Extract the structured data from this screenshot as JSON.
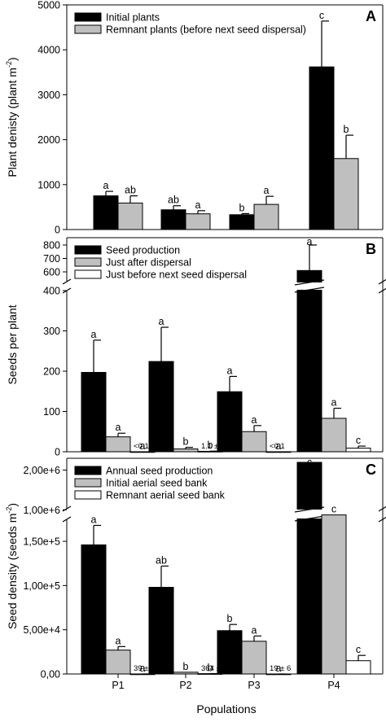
{
  "figure": {
    "xlabel": "Populations",
    "populations": [
      "P1",
      "P2",
      "P3",
      "P4"
    ],
    "colors": {
      "series1": "#000000",
      "series2": "#bfbfbf",
      "series3": "#ffffff",
      "axis": "#000000"
    }
  },
  "chart_data": [
    {
      "panel_label": "A",
      "type": "bar",
      "ylabel": "Plant denisty (plant m",
      "ylabel_sup": "-2",
      "ylabel_close": ")",
      "categories": [
        "P1",
        "P2",
        "P3",
        "P4"
      ],
      "ylim": [
        0,
        5000
      ],
      "yticks": [
        0,
        1000,
        2000,
        3000,
        4000,
        5000
      ],
      "ytick_labels": [
        "0",
        "1000",
        "2000",
        "3000",
        "4000",
        "5000"
      ],
      "legend_position": "top-left",
      "series": [
        {
          "name": "Initial plants",
          "values": [
            750,
            440,
            330,
            3620
          ],
          "errors": [
            100,
            90,
            25,
            1020
          ],
          "letters": [
            "a",
            "ab",
            "b",
            "c"
          ]
        },
        {
          "name": "Remnant plants (before next seed dispersal)",
          "values": [
            590,
            350,
            560,
            1580
          ],
          "errors": [
            160,
            70,
            180,
            520
          ],
          "letters": [
            "ab",
            "a",
            "a",
            "b"
          ]
        }
      ]
    },
    {
      "panel_label": "B",
      "type": "bar",
      "ylabel": "Seeds per plant",
      "categories": [
        "P1",
        "P2",
        "P3",
        "P4"
      ],
      "axis_break": true,
      "lower_ylim": [
        0,
        400
      ],
      "upper_ylim": [
        600,
        800
      ],
      "yticks_lower": [
        0,
        100,
        200,
        300,
        400
      ],
      "ytick_labels_lower": [
        "0",
        "100",
        "200",
        "300",
        "400"
      ],
      "yticks_upper": [
        600,
        700,
        800
      ],
      "ytick_labels_upper": [
        "600",
        "700",
        "800"
      ],
      "legend_position": "top-left",
      "series": [
        {
          "name": "Seed production",
          "values": [
            197,
            224,
            149,
            610
          ],
          "errors": [
            80,
            85,
            38,
            320
          ],
          "letters": [
            "a",
            "a",
            "a",
            "a"
          ]
        },
        {
          "name": "Just after dispersal",
          "values": [
            37,
            7,
            50,
            83
          ],
          "errors": [
            9,
            4,
            15,
            25
          ],
          "letters": [
            "a",
            "b",
            "a",
            "a"
          ]
        },
        {
          "name": "Just before next seed dispersal",
          "values": [
            0.1,
            1.1,
            0.1,
            9
          ],
          "errors": [
            0,
            0.5,
            0,
            5
          ],
          "letters": [
            "a",
            "b",
            "a",
            "c"
          ],
          "value_labels": [
            "<0.1",
            "1.1 ± 0.5",
            "<0.1",
            ""
          ]
        }
      ]
    },
    {
      "panel_label": "C",
      "type": "bar",
      "ylabel": "Seed density (seeds m",
      "ylabel_sup": "-2",
      "ylabel_close": ")",
      "categories": [
        "P1",
        "P2",
        "P3",
        "P4"
      ],
      "axis_break": true,
      "lower_ylim": [
        0,
        185000
      ],
      "upper_ylim": [
        800000,
        2400000
      ],
      "yticks_lower": [
        0,
        50000,
        100000,
        150000
      ],
      "ytick_labels_lower": [
        "0,00",
        "5,00e+4",
        "1,00e+5",
        "1,50e+5"
      ],
      "yticks_upper": [
        1000000,
        2000000
      ],
      "ytick_labels_upper": [
        "1,00e+6",
        "2,00e+6"
      ],
      "legend_position": "top-left",
      "series": [
        {
          "name": "Annual seed production",
          "values": [
            146000,
            98000,
            49000,
            2200000
          ],
          "errors": [
            22000,
            24000,
            7000,
            0
          ],
          "letters": [
            "a",
            "ab",
            "b",
            "c"
          ]
        },
        {
          "name": "Initial aerial seed bank",
          "values": [
            27000,
            2000,
            37000,
            870000
          ],
          "errors": [
            4000,
            0,
            6000,
            0
          ],
          "letters": [
            "a",
            "b",
            "a",
            "c"
          ]
        },
        {
          "name": "Remnant aerial seed bank",
          "values": [
            39,
            364,
            19,
            15000
          ],
          "errors": [
            9,
            91,
            6,
            6000
          ],
          "letters": [
            "a",
            "b",
            "a",
            "c"
          ],
          "value_labels": [
            "39 ± 9",
            "364 ± 91",
            "19 ± 6",
            ""
          ]
        }
      ]
    }
  ]
}
